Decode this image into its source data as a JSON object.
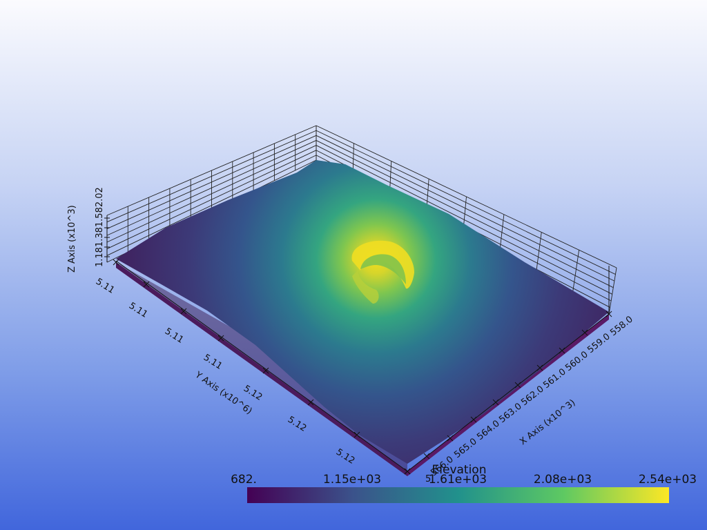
{
  "scalar_bar": {
    "title": "Elevation",
    "labels": [
      "682.",
      "1.15e+03",
      "1.61e+03",
      "2.08e+03",
      "2.54e+03"
    ],
    "range": [
      682,
      2540
    ],
    "colormap": [
      "#440154",
      "#3b528b",
      "#21918c",
      "#5ec962",
      "#fde725"
    ]
  },
  "axes": {
    "x_title": "X Axis (x10^3)",
    "y_title": "Y Axis (x10^6)",
    "z_title": "Z Axis (x10^3)",
    "x_ticks": [
      "566.0",
      "565.0",
      "564.0",
      "563.0",
      "562.0",
      "561.0",
      "560.0",
      "559.0",
      "558.0"
    ],
    "y_ticks": [
      "5.11",
      "5.11",
      "5.11",
      "5.11",
      "5.12",
      "5.12",
      "5.12"
    ],
    "z_ticks": "1.181.381.582.02",
    "x_partial_label": "5"
  },
  "colors": {
    "low": "#3d2a6b",
    "mid": "#2a7d8c",
    "high": "#f2dc2a",
    "base_side": "#5a1a66"
  }
}
